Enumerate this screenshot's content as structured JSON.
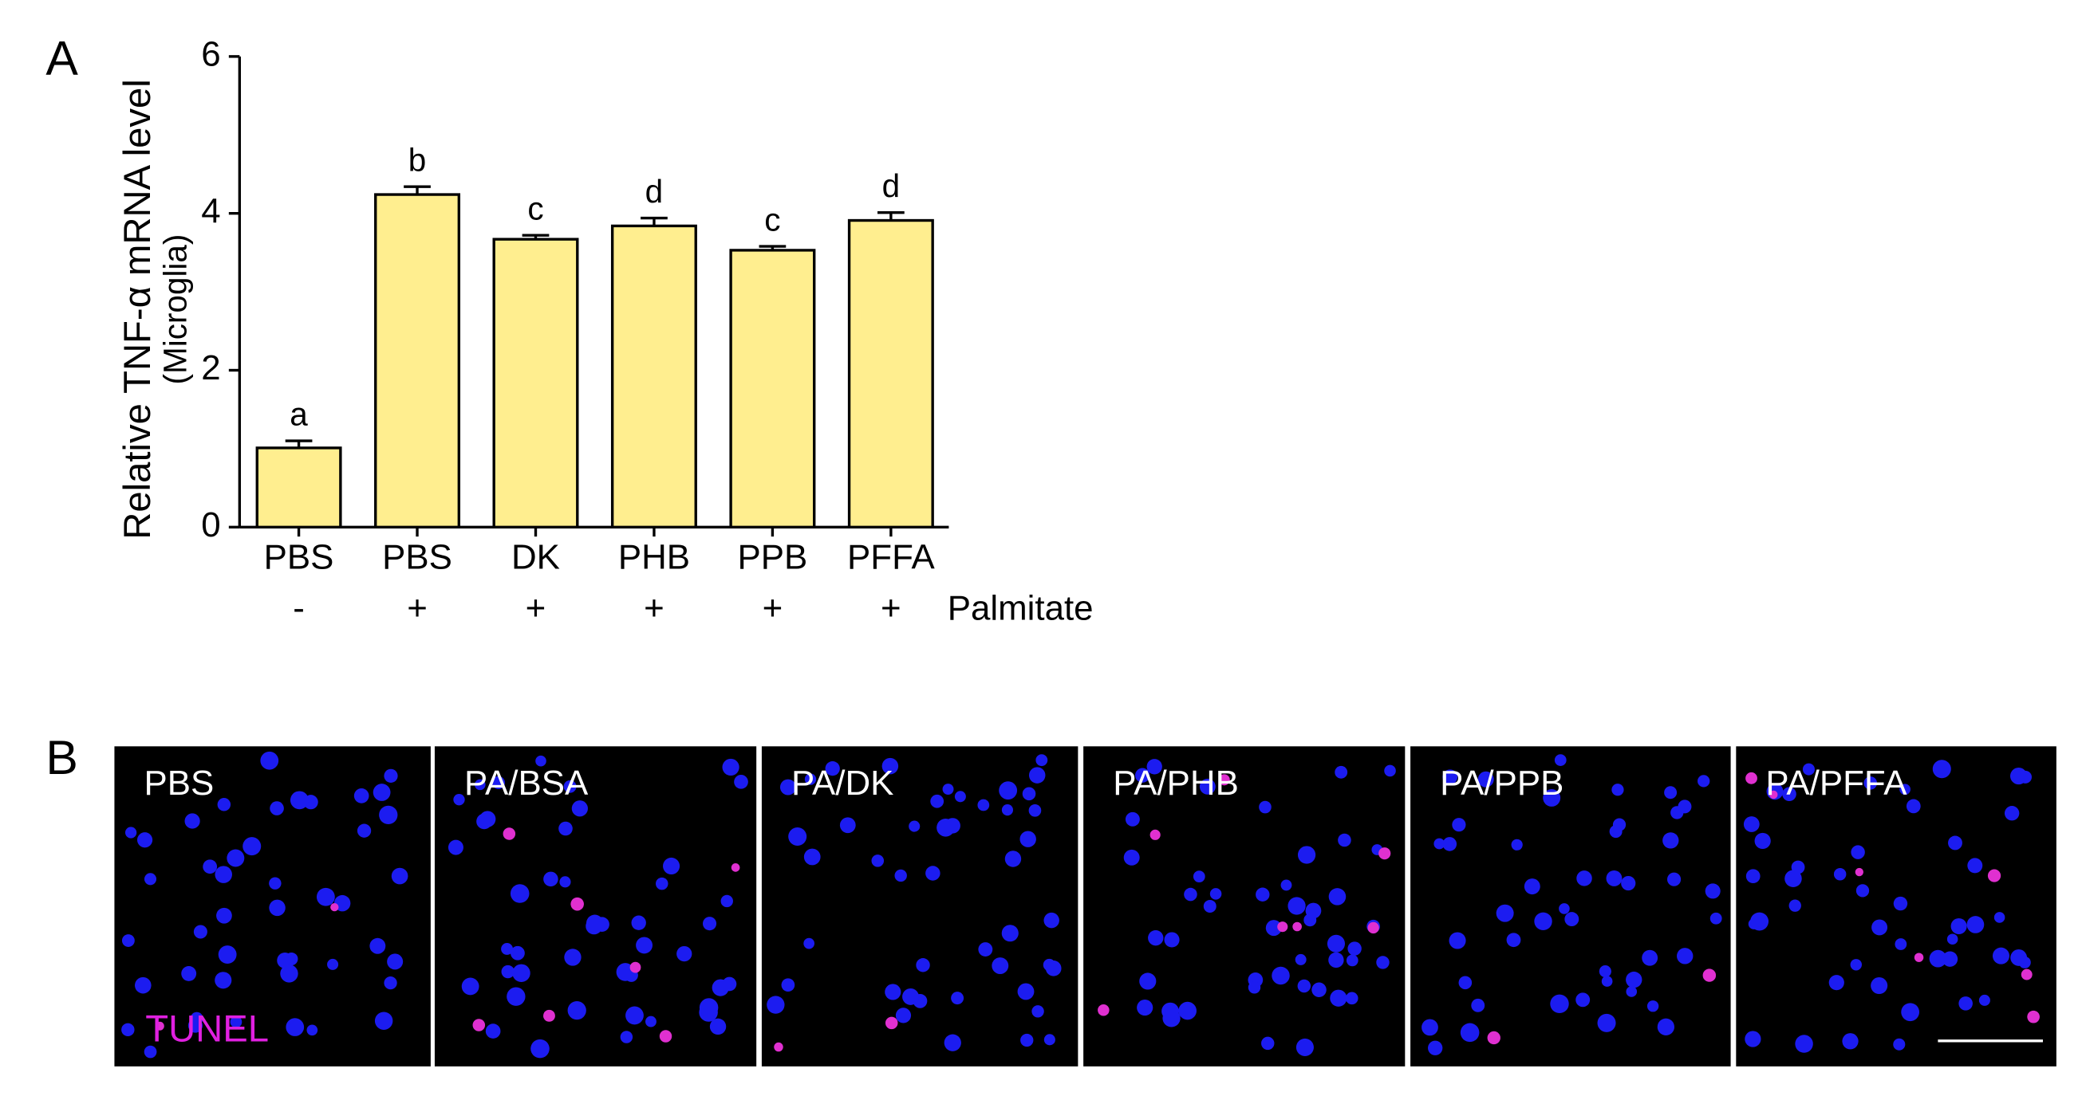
{
  "chart_data": {
    "type": "bar",
    "panel_label": "A",
    "ylabel": "Relative TNF-α mRNA level",
    "ylabel_sub": "(Microglia)",
    "categories": [
      "PBS",
      "PBS",
      "DK",
      "PHB",
      "PPB",
      "PFFA"
    ],
    "values": [
      1.01,
      4.24,
      3.67,
      3.84,
      3.53,
      3.91
    ],
    "errors": [
      0.09,
      0.1,
      0.05,
      0.1,
      0.05,
      0.1
    ],
    "letters": [
      "a",
      "b",
      "c",
      "d",
      "c",
      "d"
    ],
    "palmitate": [
      "-",
      "+",
      "+",
      "+",
      "+",
      "+"
    ],
    "palmitate_label": "Palmitate",
    "color": "#ffee8f",
    "ylim": [
      0,
      6
    ],
    "yticks": [
      0,
      2,
      4,
      6
    ],
    "grid": false
  },
  "panel_b": {
    "label": "B",
    "images": [
      "PBS",
      "PA/BSA",
      "PA/DK",
      "PA/PHB",
      "PA/PPB",
      "PA/PFFA"
    ],
    "stain": "TUNEL"
  }
}
